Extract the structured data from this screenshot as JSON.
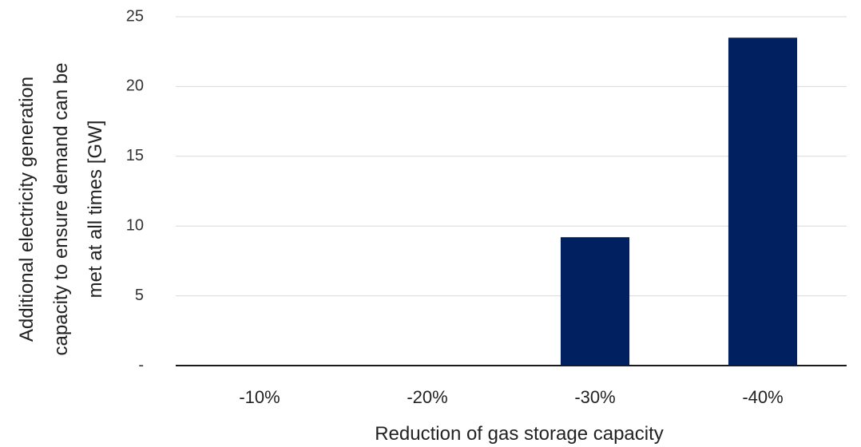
{
  "chart_data": {
    "type": "bar",
    "categories": [
      "-10%",
      "-20%",
      "-30%",
      "-40%"
    ],
    "values": [
      0,
      0,
      9.2,
      23.5
    ],
    "xlabel": "Reduction of gas storage capacity",
    "ylabel_lines": [
      "Additional electricity generation",
      "capacity to ensure demand can be",
      "met at all times [GW]"
    ],
    "ylim": [
      0,
      25
    ],
    "yticks": [
      0,
      5,
      10,
      15,
      20,
      25
    ],
    "ytick_labels": [
      "-",
      "5",
      "10",
      "15",
      "20",
      "25"
    ],
    "grid": true,
    "bar_color": "#002060",
    "legend": "none"
  }
}
